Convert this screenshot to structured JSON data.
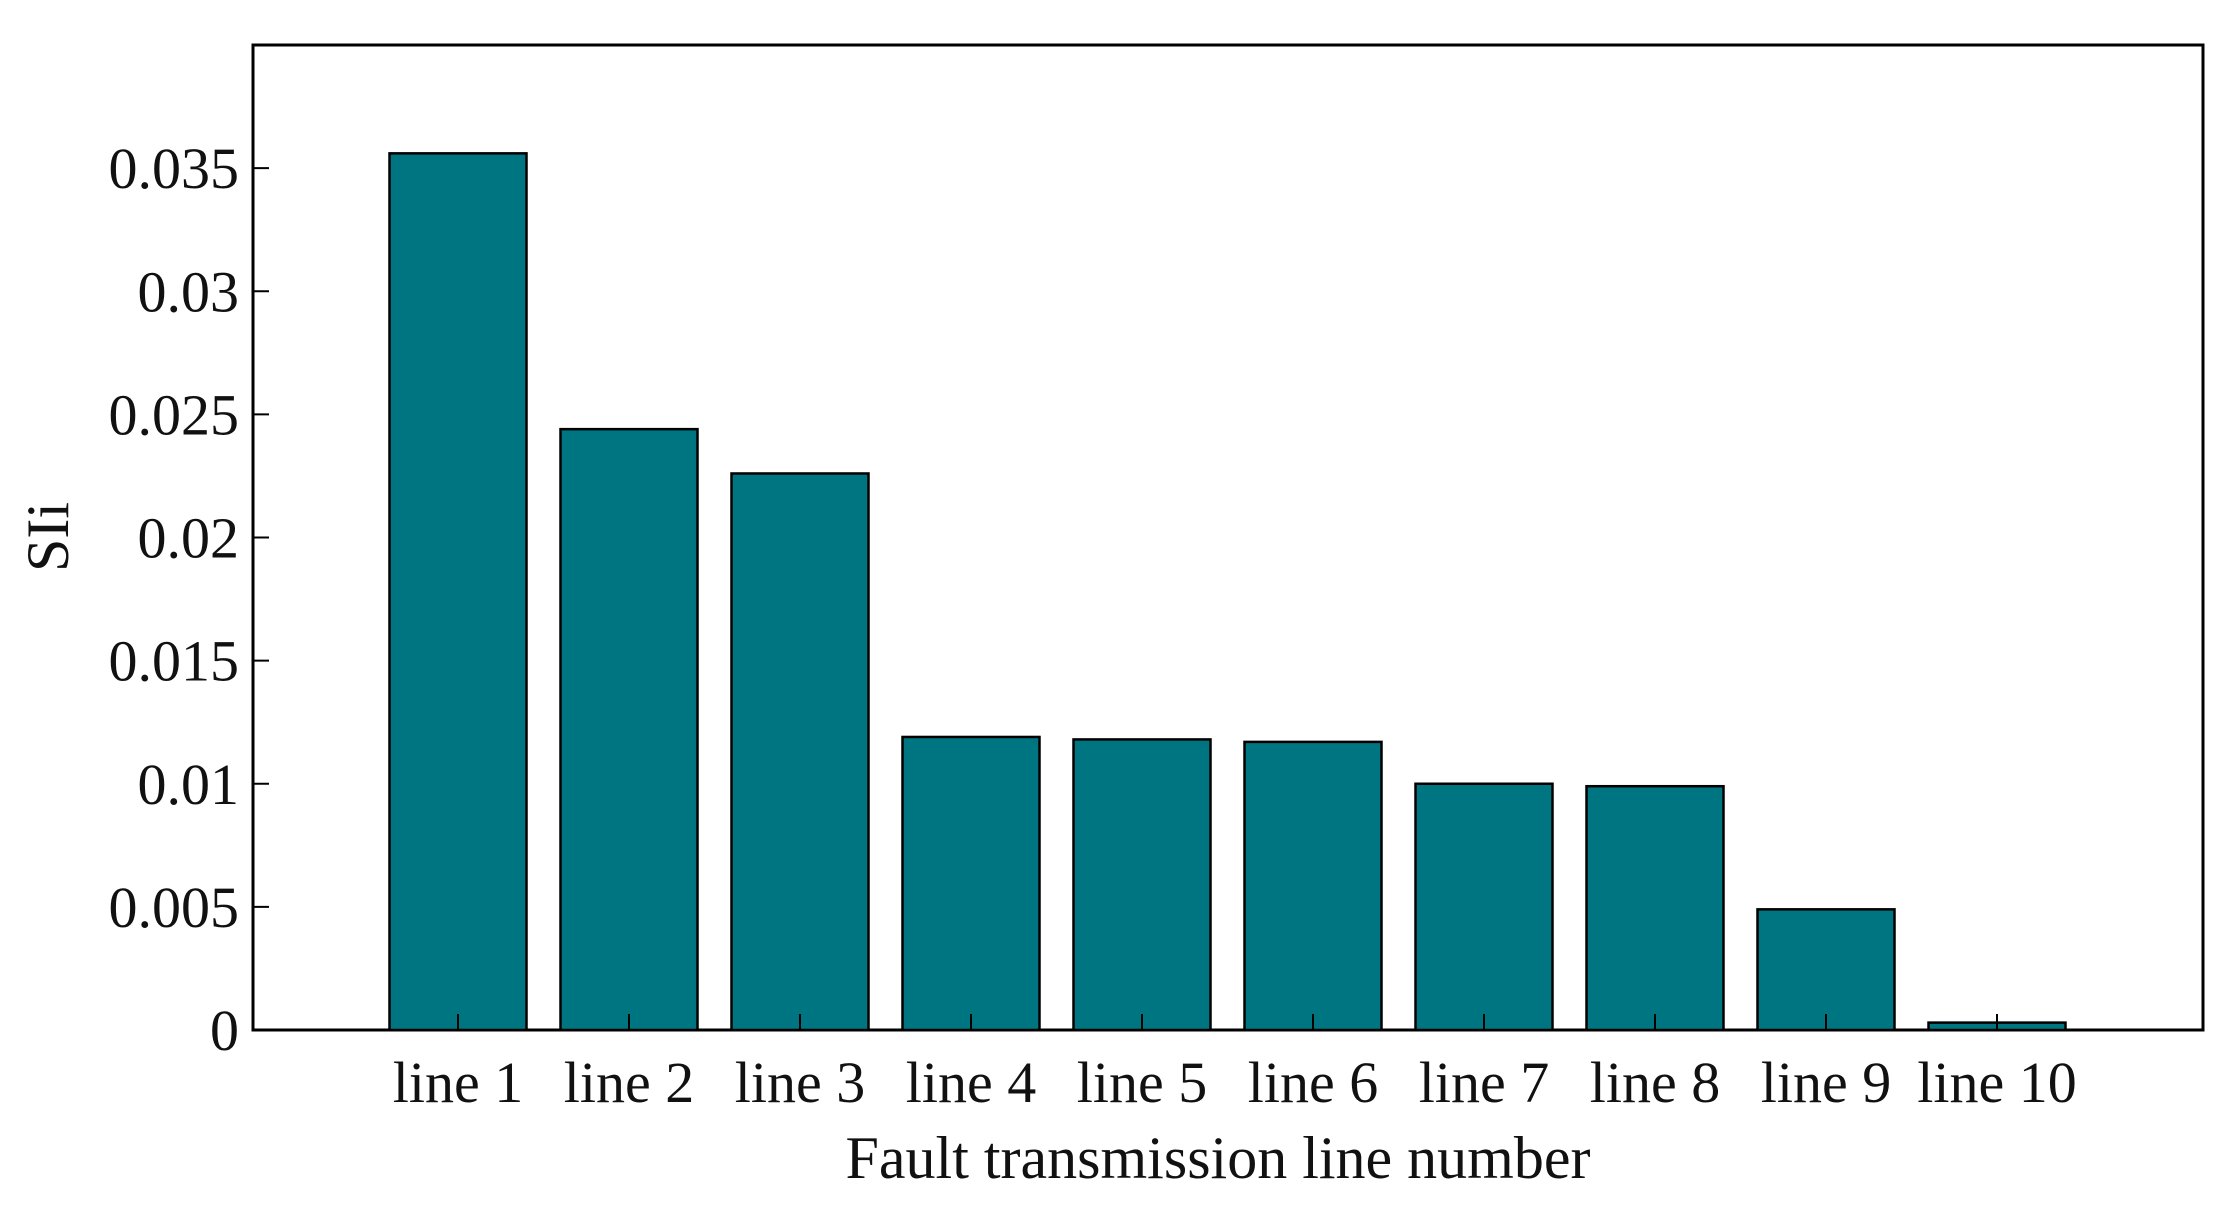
{
  "chart_data": {
    "type": "bar",
    "categories": [
      "line 1",
      "line 2",
      "line 3",
      "line 4",
      "line 5",
      "line 6",
      "line 7",
      "line 8",
      "line 9",
      "line 10"
    ],
    "values": [
      0.0356,
      0.0244,
      0.0226,
      0.0119,
      0.0118,
      0.0117,
      0.01,
      0.0099,
      0.0049,
      0.0003
    ],
    "title": "",
    "xlabel": "Fault transmission line number",
    "ylabel": "SIi",
    "ylim": [
      0,
      0.04
    ],
    "yticks": [
      0,
      0.005,
      0.01,
      0.015,
      0.02,
      0.025,
      0.03,
      0.035
    ],
    "ytick_labels": [
      "0",
      "0.005",
      "0.01",
      "0.015",
      "0.02",
      "0.025",
      "0.03",
      "0.035"
    ],
    "grid": false,
    "legend": "none",
    "bar_color": "#007582"
  }
}
